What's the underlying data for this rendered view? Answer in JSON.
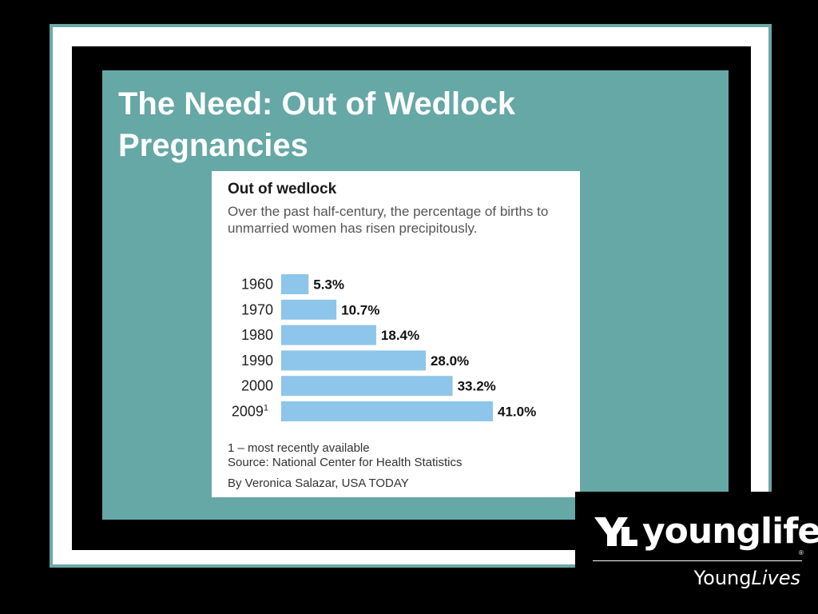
{
  "slide": {
    "title": "The Need: Out of Wedlock Pregnancies"
  },
  "chart_data": {
    "type": "bar",
    "orientation": "horizontal",
    "title": "Out of wedlock",
    "subtitle": "Over the past half-century, the percentage of births to unmarried women has risen precipitously.",
    "categories": [
      "1960",
      "1970",
      "1980",
      "1990",
      "2000",
      "2009"
    ],
    "category_superscripts": [
      "",
      "",
      "",
      "",
      "",
      "1"
    ],
    "values": [
      5.3,
      10.7,
      18.4,
      28.0,
      33.2,
      41.0
    ],
    "value_labels": [
      "5.3%",
      "10.7%",
      "18.4%",
      "28.0%",
      "33.2%",
      "41.0%"
    ],
    "xlim": [
      0,
      41.0
    ],
    "bar_color": "#8ec5ea",
    "grid": false,
    "legend": "none",
    "footnote": "1 – most recently available",
    "source": "Source: National Center for Health Statistics",
    "credit": "By Veronica Salazar, USA TODAY"
  },
  "logo": {
    "wordmark": "younglife",
    "registered": "®",
    "sub_prefix": "Young",
    "sub_italic": "Lives"
  },
  "colors": {
    "panel": "#65a8a6",
    "frame": "#ffffff",
    "background": "#000000"
  }
}
